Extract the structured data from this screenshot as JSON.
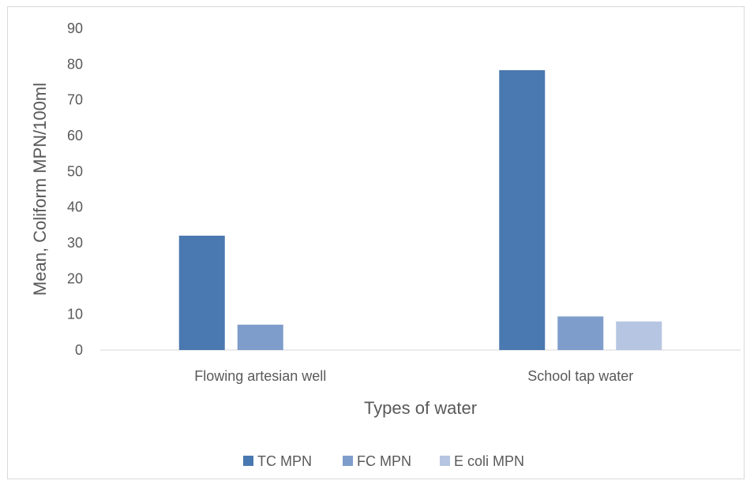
{
  "chart_data": {
    "type": "bar",
    "categories": [
      "Flowing artesian well",
      "School tap water"
    ],
    "series": [
      {
        "name": "TC MPN",
        "values": [
          32,
          78.3
        ],
        "color": "#4a78b0"
      },
      {
        "name": "FC MPN",
        "values": [
          7.1,
          9.4
        ],
        "color": "#7f9dcb"
      },
      {
        "name": "E coli MPN",
        "values": [
          0,
          8
        ],
        "color": "#b6c5e1"
      }
    ],
    "title": "",
    "xlabel": "Types of water",
    "ylabel": "Mean, Coliform MPN/100ml",
    "ylim": [
      0,
      90
    ],
    "yticks": [
      "0",
      "10",
      "20",
      "30",
      "40",
      "50",
      "60",
      "70",
      "80",
      "90"
    ],
    "grid": false,
    "legend_position": "bottom",
    "axis_color": "#d9d9d9"
  }
}
